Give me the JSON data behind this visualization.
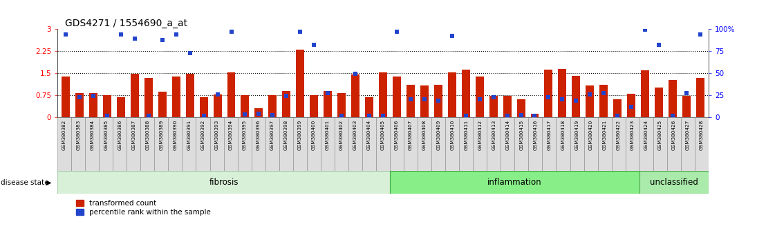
{
  "title": "GDS4271 / 1554690_a_at",
  "samples": [
    "GSM380382",
    "GSM380383",
    "GSM380384",
    "GSM380385",
    "GSM380386",
    "GSM380387",
    "GSM380388",
    "GSM380389",
    "GSM380390",
    "GSM380391",
    "GSM380392",
    "GSM380393",
    "GSM380394",
    "GSM380395",
    "GSM380396",
    "GSM380397",
    "GSM380398",
    "GSM380399",
    "GSM380400",
    "GSM380401",
    "GSM380402",
    "GSM380403",
    "GSM380404",
    "GSM380405",
    "GSM380406",
    "GSM380407",
    "GSM380408",
    "GSM380409",
    "GSM380410",
    "GSM380411",
    "GSM380412",
    "GSM380413",
    "GSM380414",
    "GSM380415",
    "GSM380416",
    "GSM380417",
    "GSM380418",
    "GSM380419",
    "GSM380420",
    "GSM380421",
    "GSM380422",
    "GSM380423",
    "GSM380424",
    "GSM380425",
    "GSM380426",
    "GSM380427",
    "GSM380428"
  ],
  "bar_values": [
    1.38,
    0.82,
    0.82,
    0.75,
    0.68,
    1.48,
    1.35,
    0.88,
    1.38,
    1.48,
    0.68,
    0.78,
    1.52,
    0.75,
    0.3,
    0.75,
    0.9,
    2.3,
    0.75,
    0.9,
    0.82,
    1.45,
    0.68,
    1.52,
    1.38,
    1.1,
    1.08,
    1.1,
    1.52,
    1.62,
    1.38,
    0.72,
    0.72,
    0.62,
    0.12,
    1.62,
    1.65,
    1.42,
    1.08,
    1.1,
    0.6,
    0.8,
    1.6,
    1.02,
    1.28,
    0.72,
    1.35
  ],
  "dot_values": [
    2.82,
    0.68,
    0.72,
    0.04,
    2.82,
    2.68,
    0.04,
    2.64,
    2.82,
    2.18,
    0.04,
    0.78,
    2.92,
    0.1,
    0.12,
    0.08,
    0.72,
    2.92,
    2.48,
    0.82,
    0.04,
    1.48,
    0.04,
    0.04,
    2.92,
    0.62,
    0.62,
    0.56,
    2.78,
    0.04,
    0.62,
    0.68,
    0.04,
    0.08,
    0.04,
    0.68,
    0.62,
    0.56,
    0.78,
    0.82,
    0.04,
    0.35,
    2.98,
    2.48,
    0.04,
    0.82,
    2.82
  ],
  "disease_groups": [
    {
      "label": "fibrosis",
      "start": 0,
      "end": 24,
      "color": "#d8f0d8",
      "edge": "#aaccaa"
    },
    {
      "label": "inflammation",
      "start": 24,
      "end": 42,
      "color": "#88ee88",
      "edge": "#44aa44"
    },
    {
      "label": "unclassified",
      "start": 42,
      "end": 47,
      "color": "#aaeaaa",
      "edge": "#55aa55"
    }
  ],
  "bar_color": "#cc2200",
  "dot_color": "#2244cc",
  "ylim_left": [
    0,
    3.0
  ],
  "ylim_right": [
    0,
    100
  ],
  "yticks_left": [
    0,
    0.75,
    1.5,
    2.25,
    3.0
  ],
  "yticks_right": [
    0,
    25,
    50,
    75,
    100
  ],
  "hlines": [
    0.75,
    1.5,
    2.25
  ],
  "ytick_left_labels": [
    "0",
    "0.75",
    "1.5",
    "2.25",
    "3"
  ],
  "ytick_right_labels": [
    "0",
    "25",
    "50",
    "75",
    "100%"
  ]
}
